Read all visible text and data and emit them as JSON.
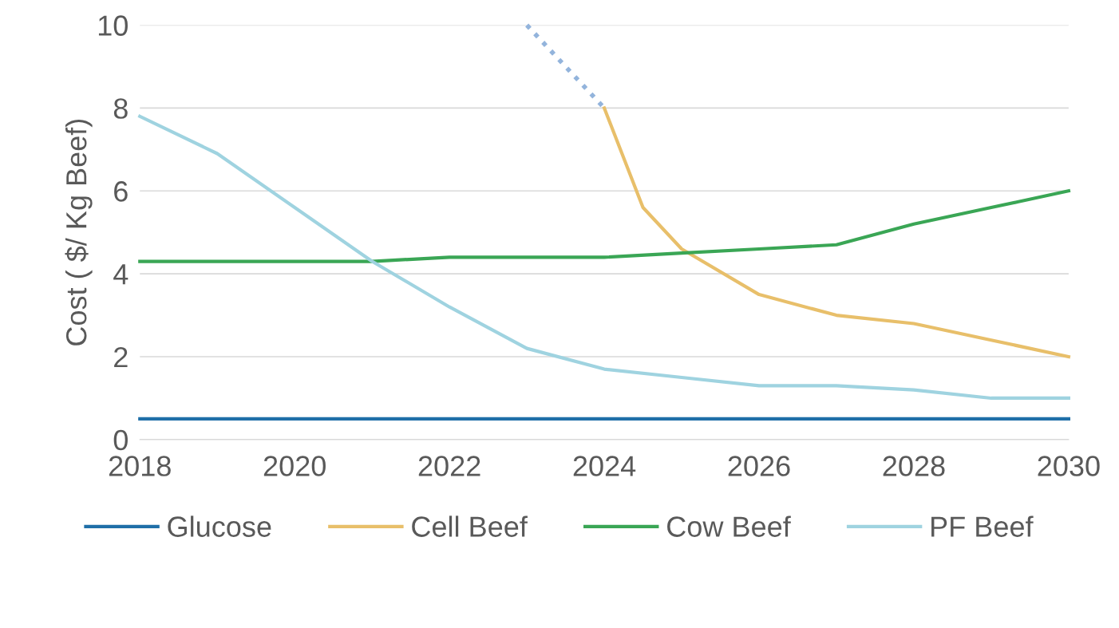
{
  "chart_data": {
    "type": "line",
    "ylabel": "Cost ( $/ Kg Beef)",
    "xlim": [
      2018,
      2030
    ],
    "xticks": [
      2018,
      2020,
      2022,
      2024,
      2026,
      2028,
      2030
    ],
    "ylim": [
      0,
      10
    ],
    "yticks": [
      0,
      2,
      4,
      6,
      8,
      10
    ],
    "grid": "y",
    "legend": "bottom",
    "series": [
      {
        "name": "Glucose",
        "color": "#1f6fa8",
        "x": [
          2018,
          2030
        ],
        "values": [
          0.5,
          0.5
        ]
      },
      {
        "name": "Cell Beef",
        "color": "#e8bf6a",
        "x": [
          2024,
          2024.5,
          2025,
          2026,
          2027,
          2028,
          2029,
          2030
        ],
        "values": [
          8.0,
          5.6,
          4.6,
          3.5,
          3.0,
          2.8,
          2.4,
          2.0
        ]
      },
      {
        "name": "Cow Beef",
        "color": "#3aa655",
        "x": [
          2018,
          2019,
          2020,
          2021,
          2022,
          2023,
          2024,
          2025,
          2026,
          2027,
          2028,
          2029,
          2030
        ],
        "values": [
          4.3,
          4.3,
          4.3,
          4.3,
          4.4,
          4.4,
          4.4,
          4.5,
          4.6,
          4.7,
          5.2,
          5.6,
          6.0
        ]
      },
      {
        "name": "PF Beef",
        "color": "#9fd3e0",
        "x": [
          2018,
          2019,
          2020,
          2021,
          2022,
          2023,
          2024,
          2025,
          2026,
          2027,
          2028,
          2029,
          2030
        ],
        "values": [
          7.8,
          6.9,
          5.6,
          4.3,
          3.2,
          2.2,
          1.7,
          1.5,
          1.3,
          1.3,
          1.2,
          1.0,
          1.0
        ]
      },
      {
        "color": "#93b4dc",
        "line_style": "dotted",
        "x": [
          2023,
          2024
        ],
        "values": [
          10,
          8
        ]
      }
    ]
  }
}
